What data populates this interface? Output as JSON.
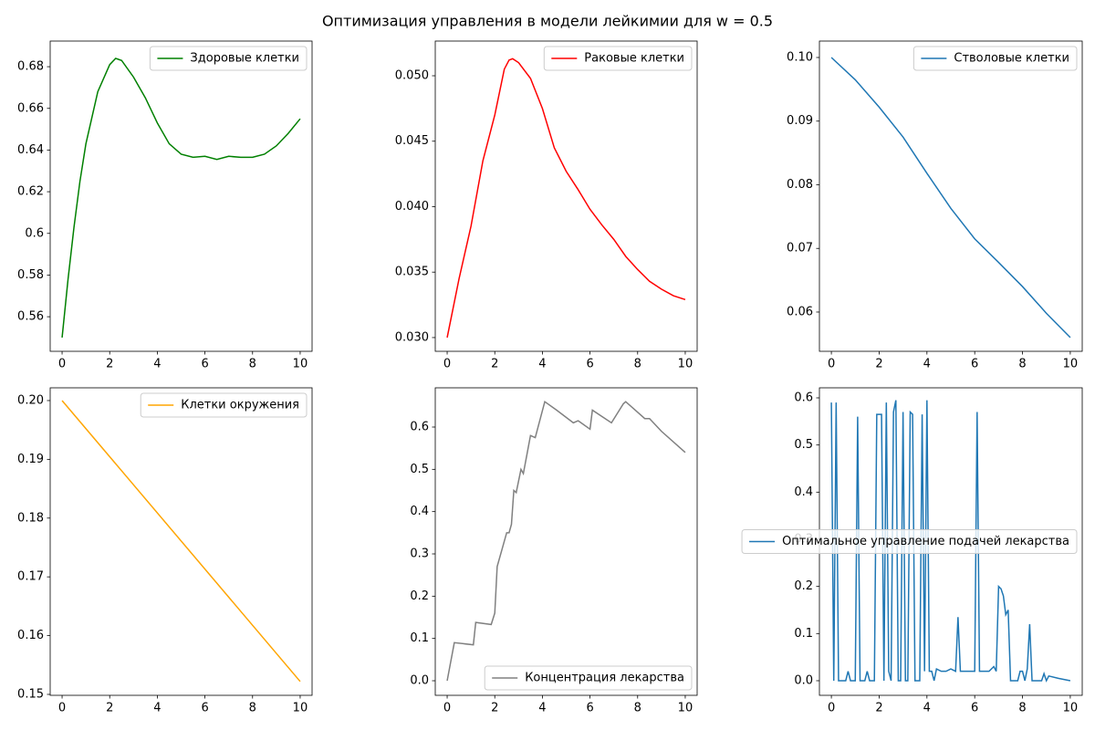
{
  "title": "Оптимизация управления в модели лейкимии для w = 0.5",
  "chart_data": [
    {
      "type": "line",
      "x": [
        0,
        0.25,
        0.5,
        0.75,
        1,
        1.5,
        2,
        2.25,
        2.5,
        3,
        3.5,
        4,
        4.5,
        5,
        5.5,
        6,
        6.5,
        7,
        7.5,
        8,
        8.5,
        9,
        9.5,
        10
      ],
      "series": [
        {
          "name": "Здоровые клетки",
          "color": "#008000",
          "values": [
            0.55,
            0.578,
            0.603,
            0.625,
            0.643,
            0.668,
            0.681,
            0.684,
            0.683,
            0.675,
            0.665,
            0.653,
            0.643,
            0.638,
            0.6365,
            0.637,
            0.6355,
            0.637,
            0.6365,
            0.6365,
            0.638,
            0.642,
            0.648,
            0.655
          ]
        }
      ],
      "xlim": [
        -0.5,
        10.5
      ],
      "ylim": [
        0.5434,
        0.6923
      ],
      "xticks": [
        0,
        2,
        4,
        6,
        8,
        10
      ],
      "yticks": [
        0.56,
        0.58,
        0.6,
        0.62,
        0.64,
        0.66,
        0.68
      ],
      "legend": "upper right"
    },
    {
      "type": "line",
      "x": [
        0,
        0.5,
        1,
        1.5,
        2,
        2.4,
        2.6,
        2.75,
        3,
        3.5,
        4,
        4.5,
        5,
        5.5,
        6,
        6.5,
        7,
        7.5,
        8,
        8.5,
        9,
        9.5,
        10
      ],
      "series": [
        {
          "name": "Раковые клетки",
          "color": "#ff0000",
          "values": [
            0.03,
            0.0345,
            0.0385,
            0.0435,
            0.047,
            0.0505,
            0.0512,
            0.0513,
            0.051,
            0.0498,
            0.0475,
            0.0445,
            0.0427,
            0.0413,
            0.0398,
            0.0386,
            0.0375,
            0.0362,
            0.0352,
            0.0343,
            0.0337,
            0.0332,
            0.0329
          ]
        }
      ],
      "xlim": [
        -0.5,
        10.5
      ],
      "ylim": [
        0.02895,
        0.05265
      ],
      "xticks": [
        0,
        2,
        4,
        6,
        8,
        10
      ],
      "yticks": [
        {
          "value": 0.03,
          "label": "0.030"
        },
        {
          "value": 0.035,
          "label": "0.035"
        },
        {
          "value": 0.04,
          "label": "0.040"
        },
        {
          "value": 0.045,
          "label": "0.045"
        },
        {
          "value": 0.05,
          "label": "0.050"
        }
      ],
      "legend": "upper right"
    },
    {
      "type": "line",
      "x": [
        0,
        1,
        2,
        3,
        4,
        5,
        6,
        7,
        8,
        9,
        10
      ],
      "series": [
        {
          "name": "Стволовые клетки",
          "color": "#1f77b4",
          "values": [
            0.1,
            0.0965,
            0.0922,
            0.0875,
            0.0818,
            0.0763,
            0.0715,
            0.0678,
            0.064,
            0.0598,
            0.056
          ]
        }
      ],
      "xlim": [
        -0.5,
        10.5
      ],
      "ylim": [
        0.05383,
        0.10258
      ],
      "xticks": [
        0,
        2,
        4,
        6,
        8,
        10
      ],
      "yticks": [
        0.06,
        0.07,
        0.08,
        0.09,
        {
          "value": 0.1,
          "label": "0.10"
        }
      ],
      "legend": "upper right"
    },
    {
      "type": "line",
      "x": [
        0,
        10
      ],
      "series": [
        {
          "name": "Клетки окружения",
          "color": "#ffa500",
          "values": [
            0.2,
            0.1522
          ]
        }
      ],
      "xlim": [
        -0.5,
        10.5
      ],
      "ylim": [
        0.14984,
        0.20217
      ],
      "xticks": [
        0,
        2,
        4,
        6,
        8,
        10
      ],
      "yticks": [
        0.15,
        0.16,
        0.17,
        0.18,
        0.19,
        {
          "value": 0.2,
          "label": "0.20"
        }
      ],
      "legend": "upper right"
    },
    {
      "type": "line",
      "x": [
        0,
        0.3,
        1.1,
        1.2,
        1.85,
        2,
        2.1,
        2.5,
        2.6,
        2.7,
        2.8,
        2.9,
        3.1,
        3.2,
        3.3,
        3.5,
        3.7,
        4.1,
        4.6,
        5.3,
        5.5,
        6,
        6.1,
        6.9,
        7.4,
        7.5,
        7.9,
        8.3,
        8.5,
        9,
        10
      ],
      "series": [
        {
          "name": "Концентрация лекарства",
          "color": "#808080",
          "values": [
            0,
            0.09,
            0.085,
            0.138,
            0.133,
            0.16,
            0.27,
            0.35,
            0.35,
            0.37,
            0.45,
            0.445,
            0.5,
            0.49,
            0.52,
            0.58,
            0.575,
            0.66,
            0.64,
            0.61,
            0.615,
            0.595,
            0.64,
            0.61,
            0.655,
            0.66,
            0.64,
            0.62,
            0.62,
            0.59,
            0.54
          ]
        }
      ],
      "xlim": [
        -0.5,
        10.5
      ],
      "ylim": [
        -0.0345,
        0.6928
      ],
      "xticks": [
        0,
        2,
        4,
        6,
        8,
        10
      ],
      "yticks": [
        {
          "value": 0,
          "label": "0.0"
        },
        0.1,
        0.2,
        0.3,
        0.4,
        0.5,
        0.6
      ],
      "legend": "lower right"
    },
    {
      "type": "line",
      "x": [
        0,
        0.1,
        0.2,
        0.3,
        0.6,
        0.7,
        0.8,
        1.0,
        1.1,
        1.2,
        1.4,
        1.5,
        1.6,
        1.8,
        1.9,
        2.1,
        2.2,
        2.3,
        2.4,
        2.5,
        2.6,
        2.7,
        2.8,
        2.9,
        3.0,
        3.1,
        3.2,
        3.3,
        3.4,
        3.5,
        3.7,
        3.8,
        3.9,
        4.0,
        4.1,
        4.2,
        4.3,
        4.4,
        4.6,
        4.8,
        5.0,
        5.2,
        5.3,
        5.4,
        5.6,
        5.8,
        6.0,
        6.1,
        6.2,
        6.6,
        6.8,
        6.9,
        7.0,
        7.1,
        7.2,
        7.3,
        7.4,
        7.5,
        7.8,
        7.9,
        8.0,
        8.1,
        8.2,
        8.3,
        8.4,
        8.8,
        8.9,
        9.0,
        9.1,
        9.5,
        10
      ],
      "series": [
        {
          "name": "Оптимальное управление подачей лекарства",
          "color": "#1f77b4",
          "values": [
            0.59,
            0,
            0.59,
            0,
            0,
            0.02,
            0,
            0,
            0.56,
            0,
            0,
            0.02,
            0,
            0,
            0.565,
            0.565,
            0,
            0.59,
            0.02,
            0,
            0.57,
            0.595,
            0,
            0,
            0.57,
            0,
            0,
            0.57,
            0.565,
            0,
            0,
            0.565,
            0.02,
            0.595,
            0.02,
            0.02,
            0,
            0.025,
            0.02,
            0.02,
            0.025,
            0.02,
            0.135,
            0.02,
            0.02,
            0.02,
            0.02,
            0.57,
            0.02,
            0.02,
            0.03,
            0.02,
            0.2,
            0.195,
            0.18,
            0.14,
            0.15,
            0,
            0,
            0.02,
            0.02,
            0,
            0.025,
            0.12,
            0,
            0,
            0.015,
            0,
            0.01,
            0.005,
            0
          ]
        }
      ],
      "xlim": [
        -0.5,
        10.5
      ],
      "ylim": [
        -0.031,
        0.6213
      ],
      "xticks": [
        0,
        2,
        4,
        6,
        8,
        10
      ],
      "yticks": [
        {
          "value": 0,
          "label": "0.0"
        },
        0.1,
        0.2,
        0.3,
        0.4,
        0.5,
        0.6
      ],
      "legend": "center right"
    }
  ]
}
